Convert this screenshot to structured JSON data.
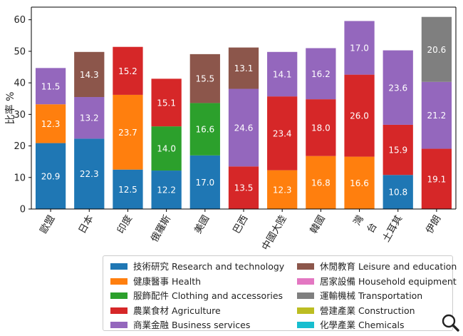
{
  "chart_data": {
    "type": "bar",
    "stacked": true,
    "ylabel": "比率 %",
    "xlabel": "",
    "ylim": [
      0,
      64
    ],
    "yticks": [
      0,
      10,
      20,
      30,
      40,
      50,
      60
    ],
    "categories": [
      "歐盟",
      "日本",
      "印度",
      "俄羅斯",
      "美國",
      "巴西",
      "中國大陸",
      "韓國",
      "灣\n台",
      "土耳其",
      "伊朗"
    ],
    "series": [
      {
        "name": "技術研究 Research and technology",
        "color": "#1f77b4",
        "values": [
          20.9,
          22.3,
          12.5,
          12.2,
          17.0,
          0,
          0,
          0,
          0,
          10.8,
          0
        ]
      },
      {
        "name": "健康醫事 Health",
        "color": "#ff7f0e",
        "values": [
          12.3,
          0,
          23.7,
          0,
          0,
          0,
          12.3,
          16.8,
          16.6,
          0,
          0
        ]
      },
      {
        "name": "服飾配件 Clothing and accessories",
        "color": "#2ca02c",
        "values": [
          0,
          0,
          0,
          14.0,
          16.6,
          0,
          0,
          0,
          0,
          0,
          0
        ]
      },
      {
        "name": "農業食材 Agriculture",
        "color": "#d62728",
        "values": [
          0,
          0,
          15.2,
          15.1,
          0,
          13.5,
          23.4,
          18.0,
          26.0,
          15.9,
          19.1
        ]
      },
      {
        "name": "商業金融 Business services",
        "color": "#9467bd",
        "values": [
          11.5,
          13.2,
          0,
          0,
          0,
          24.6,
          14.1,
          16.2,
          17.0,
          23.6,
          21.2
        ]
      },
      {
        "name": "休閒教育 Leisure and education",
        "color": "#8c564b",
        "values": [
          0,
          14.3,
          0,
          0,
          15.5,
          13.1,
          0,
          0,
          0,
          0,
          0
        ]
      },
      {
        "name": "居家設備 Household equipment",
        "color": "#e377c2",
        "values": [
          0,
          0,
          0,
          0,
          0,
          0,
          0,
          0,
          0,
          0,
          0
        ]
      },
      {
        "name": "運輸機械 Transportation",
        "color": "#7f7f7f",
        "values": [
          0,
          0,
          0,
          0,
          0,
          0,
          0,
          0,
          0,
          0,
          20.6
        ]
      },
      {
        "name": "營建產業 Construction",
        "color": "#bcbd22",
        "values": [
          0,
          0,
          0,
          0,
          0,
          0,
          0,
          0,
          0,
          0,
          0
        ]
      },
      {
        "name": "化學產業 Chemicals",
        "color": "#17becf",
        "values": [
          0,
          0,
          0,
          0,
          0,
          0,
          0,
          0,
          0,
          0,
          0
        ]
      }
    ],
    "legend_position": "bottom-right",
    "grid": false
  },
  "ui": {
    "zoom_icon": "magnifier-icon"
  }
}
